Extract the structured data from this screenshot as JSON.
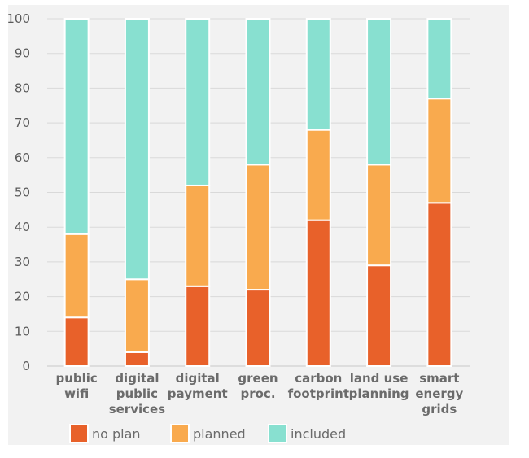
{
  "chart_data": {
    "type": "bar",
    "stacked": true,
    "categories": [
      [
        "public",
        "wifi"
      ],
      [
        "digital",
        "public",
        "services"
      ],
      [
        "digital",
        "payment"
      ],
      [
        "green",
        "proc."
      ],
      [
        "carbon",
        "footprint"
      ],
      [
        "land use",
        "planning"
      ],
      [
        "smart",
        "energy",
        "grids"
      ]
    ],
    "series": [
      {
        "name": "no plan",
        "color": "#e8612a",
        "values": [
          14,
          4,
          23,
          22,
          42,
          29,
          47
        ]
      },
      {
        "name": "planned",
        "color": "#f9aa4e",
        "values": [
          24,
          21,
          29,
          36,
          26,
          29,
          30
        ]
      },
      {
        "name": "included",
        "color": "#88e0d0",
        "values": [
          62,
          75,
          48,
          42,
          32,
          42,
          23
        ]
      }
    ],
    "ylim": [
      0,
      100
    ],
    "yticks": [
      "0",
      "10",
      "20",
      "30",
      "40",
      "50",
      "60",
      "70",
      "80",
      "90",
      "100"
    ],
    "grid": "horizontal",
    "legend": "bottom-left"
  }
}
